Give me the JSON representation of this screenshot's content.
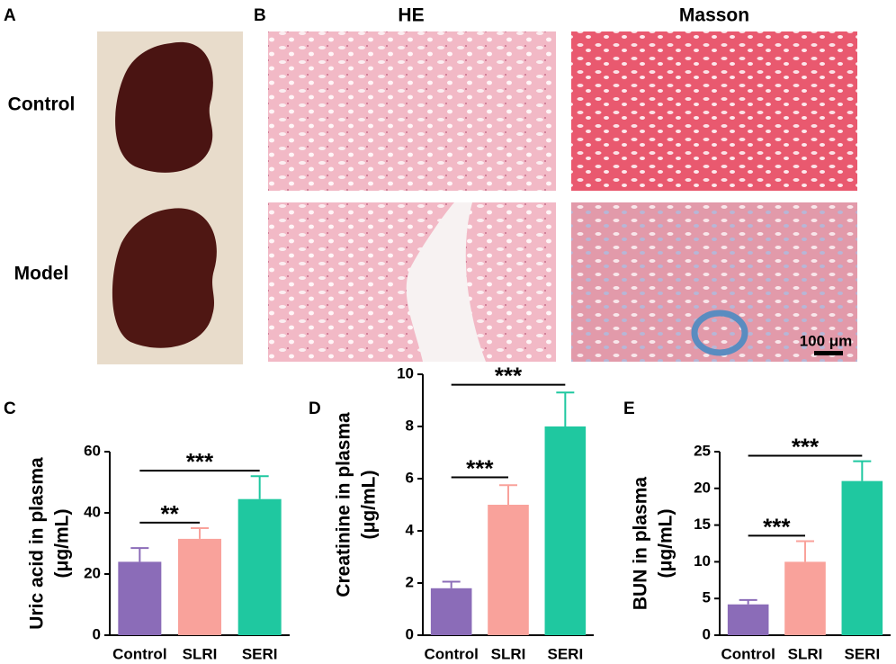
{
  "panel_labels": [
    "A",
    "B",
    "C",
    "D",
    "E"
  ],
  "panel_a": {
    "row_labels": [
      "Control",
      "Model"
    ]
  },
  "panel_b": {
    "column_labels": [
      "HE",
      "Masson"
    ],
    "scale_bar": "100 μm"
  },
  "chart_data": [
    {
      "type": "bar",
      "y_label": [
        "Uric acid in plasma",
        "(μg/mL)"
      ],
      "categories": [
        "Control",
        "SLRI",
        "SERI"
      ],
      "values": [
        24,
        31.5,
        44.5
      ],
      "errors": [
        4.5,
        3.5,
        7.5
      ],
      "colors": [
        "#8b6cb8",
        "#f9a29b",
        "#1fc8a0"
      ],
      "ylim": [
        0,
        60
      ],
      "yticks": [
        0,
        20,
        40,
        60
      ],
      "significance": [
        {
          "pair": [
            0,
            1
          ],
          "label": "**"
        },
        {
          "pair": [
            0,
            2
          ],
          "label": "***"
        }
      ]
    },
    {
      "type": "bar",
      "y_label": [
        "Creatinine in plasma",
        "(μg/mL)"
      ],
      "categories": [
        "Control",
        "SLRI",
        "SERI"
      ],
      "values": [
        1.8,
        5.0,
        8.0
      ],
      "errors": [
        0.25,
        0.75,
        1.3
      ],
      "colors": [
        "#8b6cb8",
        "#f9a29b",
        "#1fc8a0"
      ],
      "ylim": [
        0,
        10
      ],
      "yticks": [
        0,
        2,
        4,
        6,
        8,
        10
      ],
      "significance": [
        {
          "pair": [
            0,
            1
          ],
          "label": "***"
        },
        {
          "pair": [
            0,
            2
          ],
          "label": "***"
        }
      ]
    },
    {
      "type": "bar",
      "y_label": [
        "BUN in plasma",
        "(μg/mL)"
      ],
      "categories": [
        "Control",
        "SLRI",
        "SERI"
      ],
      "values": [
        4.2,
        10.0,
        21.0
      ],
      "errors": [
        0.6,
        2.8,
        2.7
      ],
      "colors": [
        "#8b6cb8",
        "#f9a29b",
        "#1fc8a0"
      ],
      "ylim": [
        0,
        25
      ],
      "yticks": [
        0,
        5,
        10,
        15,
        20,
        25
      ],
      "significance": [
        {
          "pair": [
            0,
            1
          ],
          "label": "***"
        },
        {
          "pair": [
            0,
            2
          ],
          "label": "***"
        }
      ]
    }
  ]
}
